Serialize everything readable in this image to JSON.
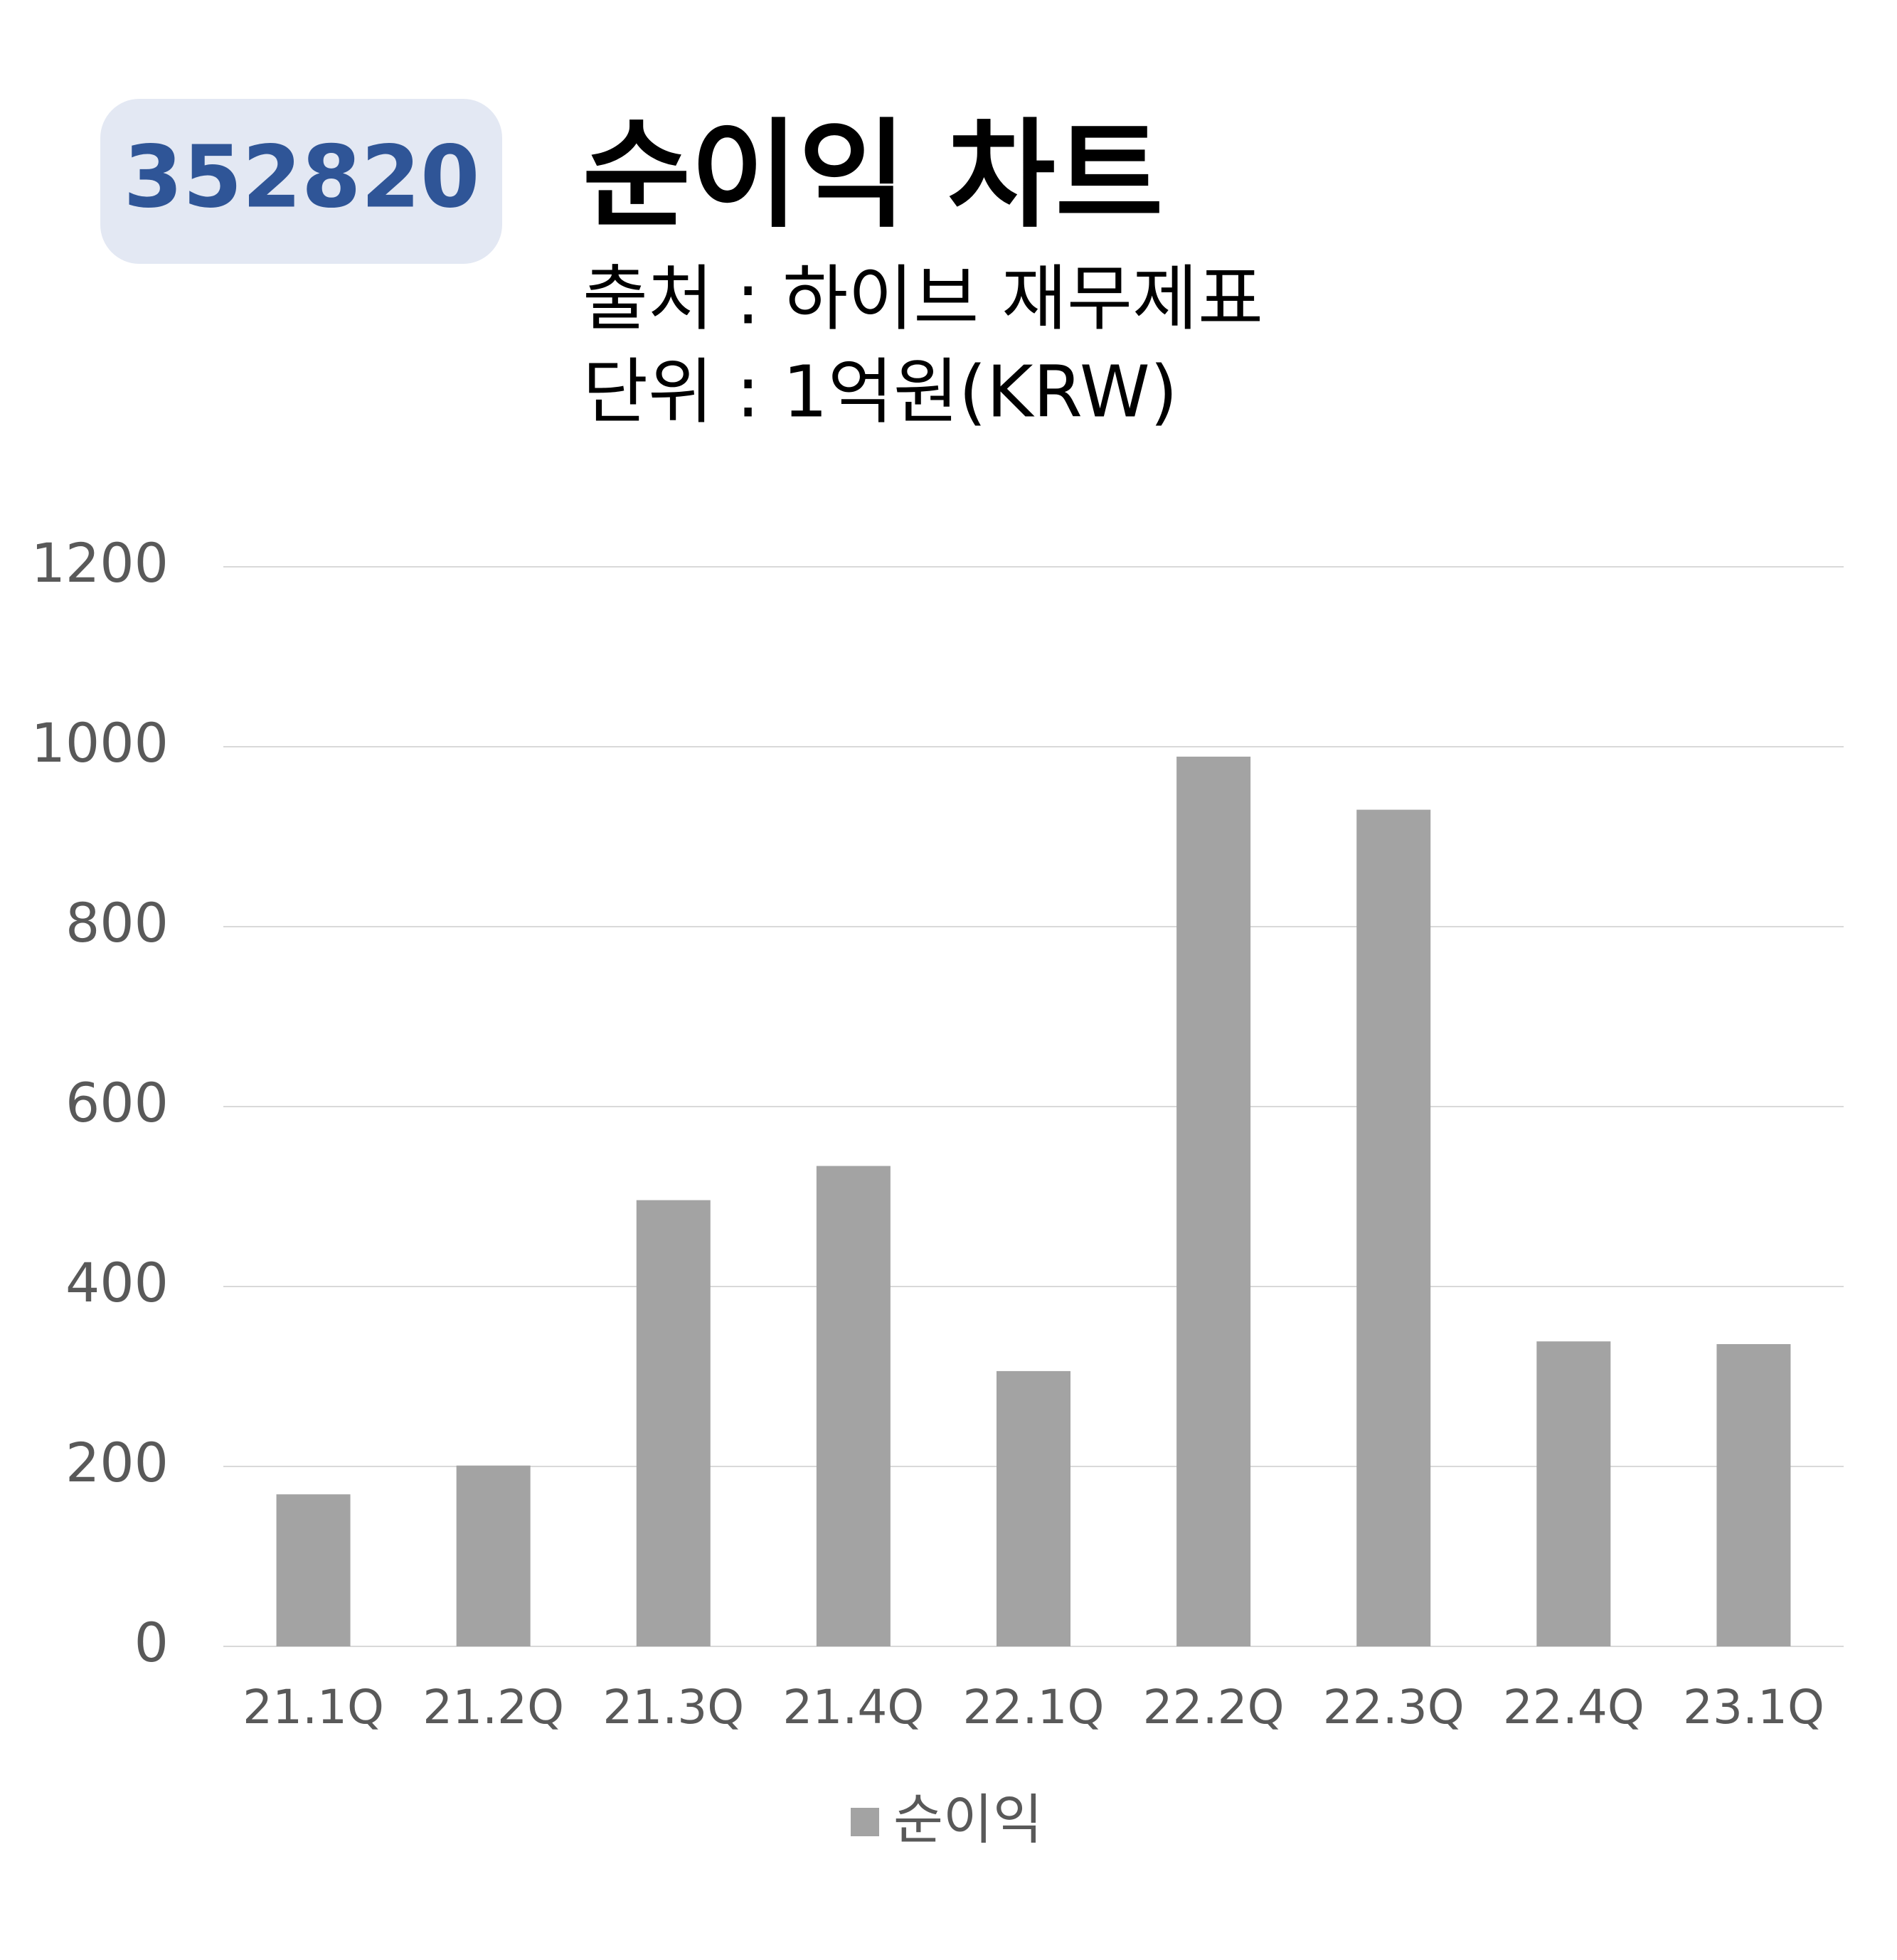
{
  "badge": "352820",
  "chart_data": {
    "type": "bar",
    "title": "순이익 차트",
    "subtitles": [
      "출처 : 하이브 재무제표",
      "단위 : 1억원(KRW)"
    ],
    "categories": [
      "21.1Q",
      "21.2Q",
      "21.3Q",
      "21.4Q",
      "22.1Q",
      "22.2Q",
      "22.3Q",
      "22.4Q",
      "23.1Q"
    ],
    "series": [
      {
        "name": "순이익",
        "color": "#a3a3a3",
        "values": [
          169,
          201,
          496,
          534,
          306,
          989,
          930,
          339,
          336
        ]
      }
    ],
    "ylim": [
      0,
      1200
    ],
    "yticks": [
      0,
      200,
      400,
      600,
      800,
      1000,
      1200
    ],
    "grid": true,
    "legend": "bottom"
  }
}
